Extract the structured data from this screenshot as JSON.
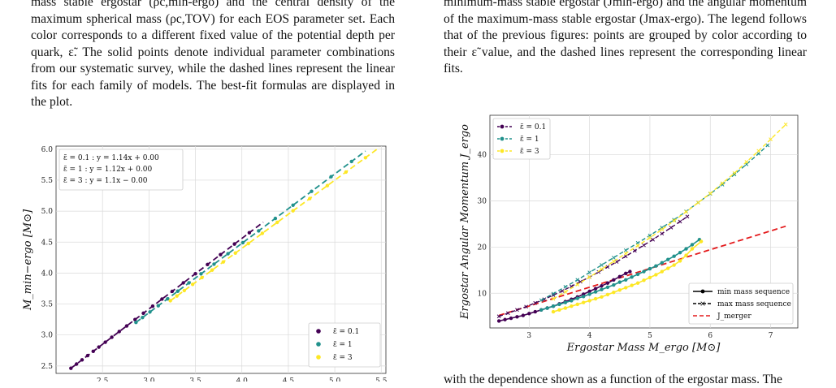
{
  "left_text": "mass stable ergostar (ρc,min-ergo) and the central density of the maximum spherical mass (ρc,TOV) for each EOS parameter set. Each color corresponds to a different fixed value of the potential depth per quark, ε̃. The solid points denote individual parameter combinations from our systematic survey, while the dashed lines represent the linear fits for each family of models. The best-fit formulas are displayed in the plot.",
  "right_text": "minimum-mass stable ergostar (Jmin-ergo) and the angular momentum of the maximum-mass stable ergostar (Jmax-ergo). The legend follows that of the previous figures: points are grouped by color according to their ε̃ value, and the dashed lines represent the corresponding linear fits.",
  "bottom_right_text": "with the dependence shown as a function of the ergostar mass. The",
  "colors": {
    "eps01": "#440154",
    "eps1": "#21918c",
    "eps3": "#fde725",
    "merger": "#e41a1c"
  },
  "chart_data": [
    {
      "type": "scatter",
      "xlabel": "",
      "ylabel": "M_min−ergo [M⊙]",
      "xlim": [
        2.0,
        5.55
      ],
      "ylim": [
        2.38,
        6.05
      ],
      "xticks": [
        "2.5",
        "3.0",
        "3.5",
        "4.0",
        "4.5",
        "5.0",
        "5.5"
      ],
      "yticks": [
        "2.5",
        "3.0",
        "3.5",
        "4.0",
        "4.5",
        "5.0",
        "5.5",
        "6.0"
      ],
      "grid": true,
      "fit_box": [
        "ε̃ = 0.1 :  y = 1.14x + 0.00",
        "ε̃ = 1 :  y = 1.12x + 0.00",
        "ε̃ = 3 :  y = 1.1x − 0.00"
      ],
      "legend_position": "lower-right",
      "series": [
        {
          "name": "ε̃ = 0.1",
          "color": "#440154",
          "slope": 1.14,
          "intercept": 0.0,
          "x": [
            2.16,
            2.22,
            2.28,
            2.34,
            2.4,
            2.46,
            2.53,
            2.6,
            2.68,
            2.76,
            2.85,
            2.94,
            3.04,
            3.14,
            3.25,
            3.37,
            3.5,
            3.63,
            3.77,
            3.92,
            4.08
          ]
        },
        {
          "name": "ε̃ = 1",
          "color": "#21918c",
          "slope": 1.12,
          "intercept": 0.0,
          "x": [
            2.86,
            2.93,
            3.01,
            3.1,
            3.2,
            3.31,
            3.43,
            3.56,
            3.7,
            3.85,
            4.01,
            4.18,
            4.36,
            4.55,
            4.75,
            4.96,
            5.18
          ]
        },
        {
          "name": "ε̃ = 3",
          "color": "#fde725",
          "slope": 1.1,
          "intercept": 0.0,
          "x": [
            3.23,
            3.3,
            3.38,
            3.47,
            3.57,
            3.68,
            3.8,
            3.93,
            4.07,
            4.22,
            4.38,
            4.55,
            4.73,
            4.92,
            5.12,
            5.33
          ]
        }
      ]
    },
    {
      "type": "line",
      "xlabel": "Ergostar Mass M_ergo [M⊙]",
      "ylabel": "Ergostar Angular Momentum J_ergo",
      "xlim": [
        2.35,
        7.45
      ],
      "ylim": [
        2.5,
        48.5
      ],
      "xticks": [
        "3",
        "4",
        "5",
        "6",
        "7"
      ],
      "yticks": [
        "10",
        "20",
        "30",
        "40"
      ],
      "grid": true,
      "legend_top": [
        "ε̃ = 0.1",
        "ε̃ = 1",
        "ε̃ = 3"
      ],
      "legend_bottom": [
        "min mass sequence",
        "max mass sequence",
        "J_merger"
      ],
      "series_min": [
        {
          "name": "ε̃ = 0.1",
          "color": "#440154",
          "x": [
            2.5,
            2.6,
            2.7,
            2.8,
            2.9,
            3.0,
            3.1,
            3.2,
            3.3,
            3.4,
            3.5,
            3.6,
            3.7,
            3.8,
            3.9,
            4.0,
            4.1,
            4.2,
            4.3,
            4.4,
            4.5,
            4.6,
            4.67
          ],
          "y": [
            4.0,
            4.3,
            4.6,
            4.9,
            5.2,
            5.6,
            6.0,
            6.4,
            6.8,
            7.2,
            7.7,
            8.2,
            8.7,
            9.2,
            9.8,
            10.4,
            11.0,
            11.6,
            12.2,
            12.9,
            13.6,
            14.3,
            14.7
          ]
        },
        {
          "name": "ε̃ = 1",
          "color": "#21918c",
          "x": [
            3.2,
            3.3,
            3.4,
            3.5,
            3.6,
            3.7,
            3.8,
            3.9,
            4.0,
            4.1,
            4.2,
            4.3,
            4.4,
            4.5,
            4.6,
            4.7,
            4.8,
            4.9,
            5.0,
            5.1,
            5.2,
            5.3,
            5.4,
            5.5,
            5.6,
            5.7,
            5.82
          ],
          "y": [
            6.4,
            6.8,
            7.2,
            7.6,
            8.0,
            8.4,
            8.9,
            9.3,
            9.8,
            10.3,
            10.8,
            11.3,
            11.8,
            12.4,
            12.9,
            13.5,
            14.1,
            14.7,
            15.3,
            15.9,
            16.6,
            17.3,
            18.0,
            18.8,
            19.6,
            20.5,
            21.6
          ]
        },
        {
          "name": "ε̃ = 3",
          "color": "#fde725",
          "x": [
            3.4,
            3.5,
            3.6,
            3.7,
            3.8,
            3.9,
            4.0,
            4.1,
            4.2,
            4.3,
            4.4,
            4.5,
            4.6,
            4.7,
            4.8,
            4.9,
            5.0,
            5.1,
            5.2,
            5.3,
            5.4,
            5.5,
            5.6,
            5.7,
            5.85
          ],
          "y": [
            6.0,
            6.4,
            6.8,
            7.2,
            7.6,
            8.0,
            8.4,
            8.8,
            9.2,
            9.7,
            10.2,
            10.7,
            11.2,
            11.7,
            12.2,
            12.8,
            13.4,
            14.0,
            14.7,
            15.4,
            16.1,
            17.0,
            18.2,
            19.6,
            21.2
          ]
        }
      ],
      "series_max": [
        {
          "name": "ε̃ = 0.1",
          "color": "#440154",
          "x": [
            2.5,
            2.65,
            2.8,
            2.95,
            3.1,
            3.25,
            3.4,
            3.55,
            3.7,
            3.85,
            4.0,
            4.15,
            4.3,
            4.45,
            4.6,
            4.75,
            4.9,
            5.05,
            5.2,
            5.35,
            5.5,
            5.62
          ],
          "y": [
            5.0,
            5.7,
            6.4,
            7.1,
            7.9,
            8.7,
            9.6,
            10.5,
            11.5,
            12.5,
            13.5,
            14.6,
            15.7,
            16.8,
            18.0,
            19.2,
            20.4,
            21.6,
            22.9,
            24.2,
            25.5,
            26.6
          ]
        },
        {
          "name": "ε̃ = 1",
          "color": "#21918c",
          "x": [
            3.2,
            3.4,
            3.6,
            3.8,
            4.0,
            4.2,
            4.4,
            4.6,
            4.8,
            5.0,
            5.2,
            5.4,
            5.6,
            5.8,
            6.0,
            6.2,
            6.4,
            6.6,
            6.8,
            6.95
          ],
          "y": [
            8.5,
            9.9,
            11.4,
            12.9,
            14.5,
            16.1,
            17.7,
            19.3,
            20.9,
            22.5,
            24.2,
            25.9,
            27.7,
            29.6,
            31.5,
            33.5,
            35.7,
            37.9,
            40.2,
            42.0
          ]
        },
        {
          "name": "ε̃ = 3",
          "color": "#fde725",
          "x": [
            3.4,
            3.6,
            3.8,
            4.0,
            4.2,
            4.4,
            4.6,
            4.8,
            5.0,
            5.2,
            5.4,
            5.6,
            5.8,
            6.0,
            6.2,
            6.4,
            6.6,
            6.8,
            7.0,
            7.25
          ],
          "y": [
            8.8,
            10.3,
            11.9,
            13.5,
            15.2,
            16.9,
            18.6,
            20.3,
            22.0,
            23.8,
            25.7,
            27.6,
            29.6,
            31.6,
            33.8,
            36.0,
            38.4,
            40.8,
            43.3,
            46.5
          ]
        }
      ],
      "merger_line": {
        "name": "J_merger",
        "color": "#e41a1c",
        "x": [
          2.5,
          7.25
        ],
        "y": [
          5.2,
          24.5
        ]
      }
    }
  ]
}
